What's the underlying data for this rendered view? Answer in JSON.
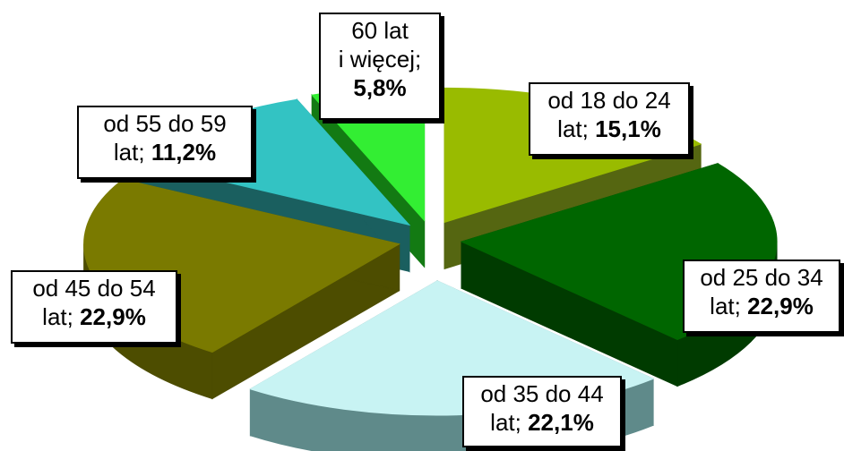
{
  "chart_data": {
    "type": "pie",
    "style": "3d-exploded",
    "legend": "none",
    "slices": [
      {
        "line1": "od 18 do 24",
        "line2": "lat;",
        "value_text": "15,1%",
        "value": 15.1,
        "color": "#99bb00",
        "side": "#556611"
      },
      {
        "line1": "od 25 do 34",
        "line2": "lat;",
        "value_text": "22,9%",
        "value": 22.9,
        "color": "#006600",
        "side": "#003b00"
      },
      {
        "line1": "od 35 do 44",
        "line2": "lat;",
        "value_text": "22,1%",
        "value": 22.1,
        "color": "#c8f3f3",
        "side": "#5f8a8a"
      },
      {
        "line1": "od 45 do 54",
        "line2": "lat;",
        "value_text": "22,9%",
        "value": 22.9,
        "color": "#7a7a00",
        "side": "#4d4d00"
      },
      {
        "line1": "od 55 do 59",
        "line2": "lat;",
        "value_text": "11,2%",
        "value": 11.2,
        "color": "#33c3c3",
        "side": "#1a5f5f"
      },
      {
        "line1": "60 lat",
        "line2": "i więcej;",
        "value_text": "5,8%",
        "value": 5.8,
        "color": "#33ee33",
        "side": "#137a13"
      }
    ]
  }
}
